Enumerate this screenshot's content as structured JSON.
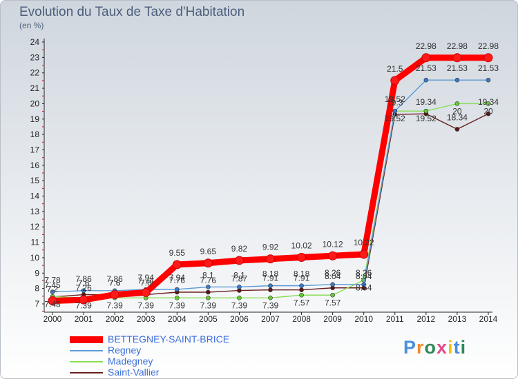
{
  "chart_data": {
    "type": "line",
    "title": "Evolution du Taux de Taxe d'Habitation",
    "ylabel": "(en %)",
    "xlabel": "",
    "x": [
      "2000",
      "2001",
      "2002",
      "2003",
      "2004",
      "2005",
      "2006",
      "2007",
      "2008",
      "2009",
      "2010",
      "2011",
      "2012",
      "2013",
      "2014"
    ],
    "yticks": [
      "7",
      "8",
      "9",
      "10",
      "11",
      "12",
      "13",
      "14",
      "15",
      "16",
      "17",
      "18",
      "19",
      "20",
      "21",
      "22",
      "23",
      "24"
    ],
    "ylim": [
      7,
      24
    ],
    "grid": false,
    "series": [
      {
        "name": "BETTEGNEY-SAINT-BRICE",
        "color": "#ff0000",
        "marker": "#ff1a1a",
        "values": [
          7.2,
          7.26,
          7.6,
          7.74,
          9.55,
          9.65,
          9.82,
          9.92,
          10.02,
          10.12,
          10.22,
          21.5,
          22.98,
          22.98,
          22.98
        ],
        "labels": [
          "7.2",
          "7.26",
          "7.6",
          "7.74",
          "9.55",
          "9.65",
          "9.82",
          "9.92",
          "10.02",
          "10.12",
          "10.22",
          "21.5",
          "22.98",
          "22.98",
          "22.98"
        ]
      },
      {
        "name": "Regney",
        "color": "#5b9bd5",
        "marker": "#3a7bc8",
        "values": [
          7.78,
          7.86,
          7.86,
          7.94,
          7.94,
          8.1,
          8.1,
          8.18,
          8.18,
          8.26,
          8.26,
          19.52,
          21.53,
          21.53,
          21.53
        ],
        "labels": [
          "7.78",
          "7.86",
          "7.86",
          "7.94",
          "7.94",
          "8.1",
          "8.1",
          "8.18",
          "8.18",
          "8.26",
          "8.26",
          "19.52",
          "21.53",
          "21.53",
          "21.53"
        ]
      },
      {
        "name": "Madegney",
        "color": "#88dd55",
        "marker": "#66cc33",
        "values": [
          7.48,
          7.39,
          7.39,
          7.39,
          7.39,
          7.39,
          7.39,
          7.39,
          7.57,
          7.57,
          8.54,
          19.52,
          19.52,
          20,
          20
        ],
        "labels": [
          "7.48",
          "7.39",
          "7.39",
          "7.39",
          "7.39",
          "7.39",
          "7.39",
          "7.39",
          "7.57",
          "7.57",
          "8.54",
          "19.52",
          "19.52",
          "20",
          "20"
        ]
      },
      {
        "name": "Saint-Vallier",
        "color": "#6b1e1e",
        "marker": "#5a1515",
        "values": [
          7.45,
          7.6,
          7.6,
          7.6,
          7.76,
          7.76,
          7.87,
          7.91,
          7.91,
          8.04,
          8.04,
          19.3,
          19.34,
          18.34,
          19.34
        ],
        "labels": [
          "7.45",
          "7.6",
          "7.6",
          "7.6",
          "7.76",
          "7.76",
          "7.87",
          "7.91",
          "7.91",
          "8.04",
          "8.04",
          "19.3",
          "19.34",
          "18.34",
          "19.34"
        ]
      }
    ]
  },
  "legend": {
    "items": [
      {
        "label": "BETTEGNEY-SAINT-BRICE"
      },
      {
        "label": "Regney"
      },
      {
        "label": "Madegney"
      },
      {
        "label": "Saint-Vallier"
      }
    ]
  },
  "logo": {
    "text": "Proxiti",
    "letter_colors": [
      "#4a90d9",
      "#f28c28",
      "#2e8b57",
      "#e34b8a",
      "#f2c500",
      "#4a90d9",
      "#2e8b57"
    ]
  }
}
